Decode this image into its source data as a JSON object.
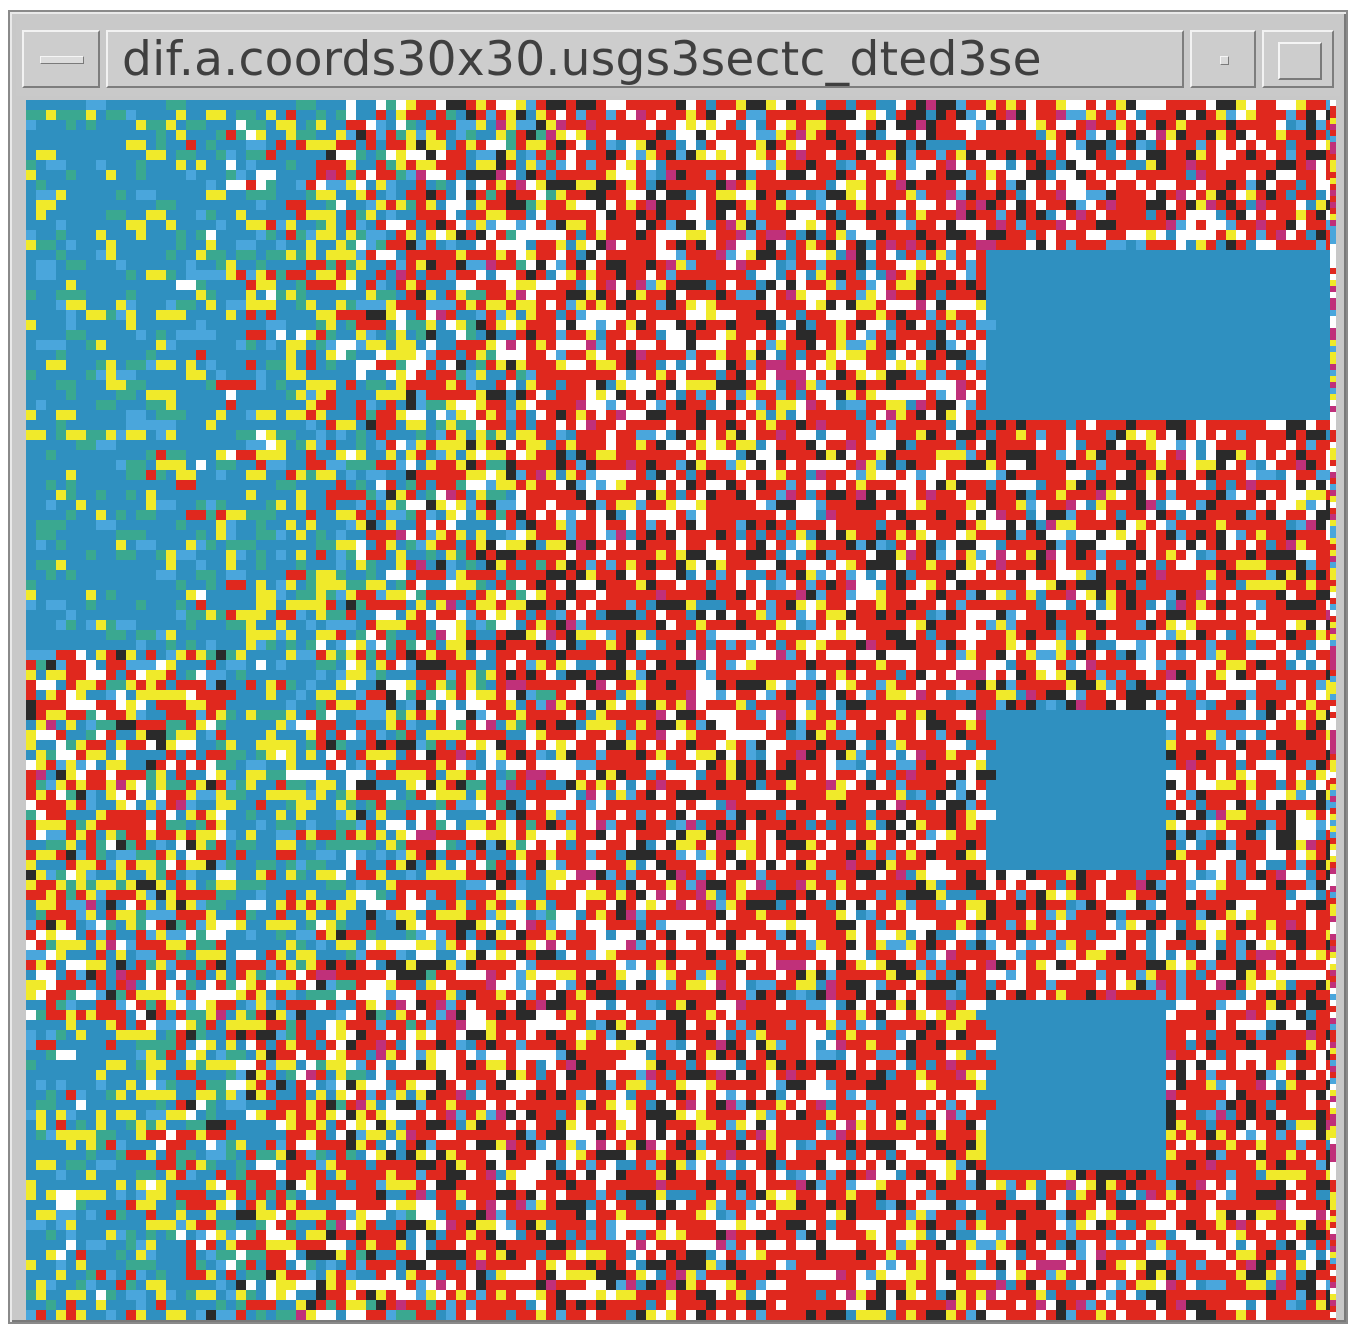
{
  "window": {
    "title": "dif.a.coords30x30.usgs3sectc_dted3se",
    "menu_icon": "window-menu-icon",
    "minimize_icon": "minimize-icon",
    "maximize_icon": "maximize-icon"
  },
  "image": {
    "description_icon": "elevation-difference-map",
    "palette": {
      "background": "#2f90c0",
      "blue_light": "#4aa6dc",
      "green": "#3aa890",
      "yellow": "#f0ea2a",
      "red": "#e0281e",
      "white": "#ffffff",
      "black": "#2a2a2a",
      "magenta": "#c0307a"
    }
  }
}
